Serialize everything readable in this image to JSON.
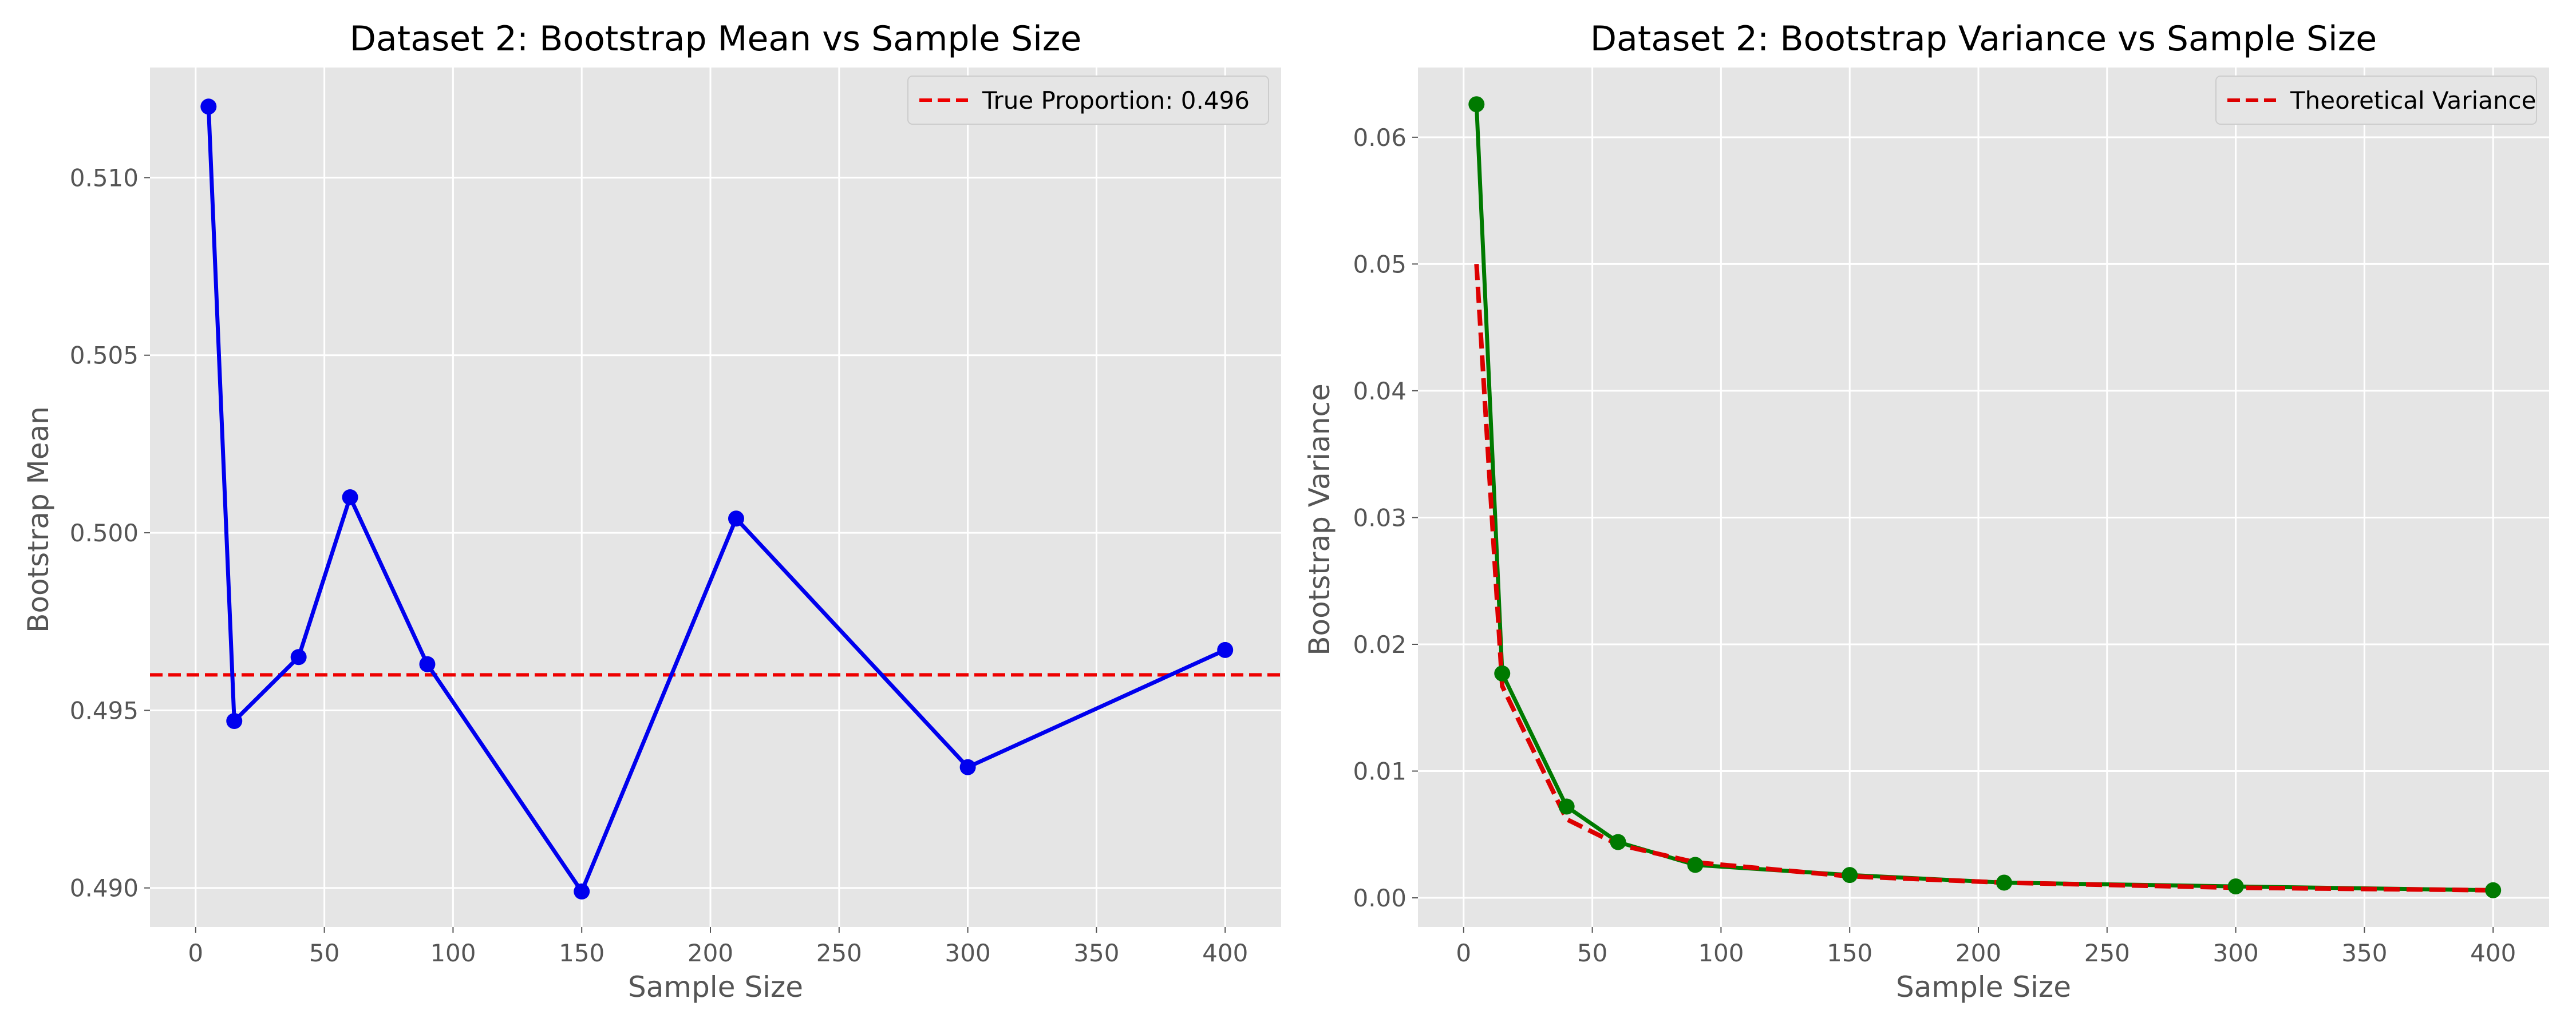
{
  "chart_data": [
    {
      "type": "line",
      "title": "Dataset 2: Bootstrap Mean vs Sample Size",
      "xlabel": "Sample Size",
      "ylabel": "Bootstrap Mean",
      "xlim": [
        -17.75,
        421.75
      ],
      "ylim": [
        0.4889,
        0.5131
      ],
      "xticks": [
        0,
        50,
        100,
        150,
        200,
        250,
        300,
        350,
        400
      ],
      "xtick_labels": [
        "0",
        "50",
        "100",
        "150",
        "200",
        "250",
        "300",
        "350",
        "400"
      ],
      "yticks": [
        0.49,
        0.495,
        0.5,
        0.505,
        0.51
      ],
      "ytick_labels": [
        "0.490",
        "0.495",
        "0.500",
        "0.505",
        "0.510"
      ],
      "grid": true,
      "legend_position": "upper-right",
      "x": [
        5,
        15,
        40,
        60,
        90,
        150,
        210,
        300,
        400
      ],
      "series": [
        {
          "values": [
            0.512,
            0.4947,
            0.4965,
            0.501,
            0.4963,
            0.4899,
            0.5004,
            0.4934,
            0.4967
          ],
          "color": "#0000ee",
          "style": "solid",
          "marker": "circle"
        }
      ],
      "reference_lines": [
        {
          "orientation": "horizontal",
          "y": 0.496,
          "label": "True Proportion: 0.496",
          "color": "#ee0000",
          "style": "dashed"
        }
      ]
    },
    {
      "type": "line",
      "title": "Dataset 2: Bootstrap Variance vs Sample Size",
      "xlabel": "Sample Size",
      "ylabel": "Bootstrap Variance",
      "xlim": [
        -17.75,
        421.75
      ],
      "ylim": [
        -0.0023,
        0.0655
      ],
      "xticks": [
        0,
        50,
        100,
        150,
        200,
        250,
        300,
        350,
        400
      ],
      "xtick_labels": [
        "0",
        "50",
        "100",
        "150",
        "200",
        "250",
        "300",
        "350",
        "400"
      ],
      "yticks": [
        0.0,
        0.01,
        0.02,
        0.03,
        0.04,
        0.05,
        0.06
      ],
      "ytick_labels": [
        "0.00",
        "0.01",
        "0.02",
        "0.03",
        "0.04",
        "0.05",
        "0.06"
      ],
      "grid": true,
      "legend_position": "upper-right",
      "x": [
        5,
        15,
        40,
        60,
        90,
        150,
        210,
        300,
        400
      ],
      "series": [
        {
          "values": [
            0.0626,
            0.0177,
            0.0072,
            0.0044,
            0.0026,
            0.0018,
            0.0012,
            0.0009,
            0.0006
          ],
          "color": "#007a00",
          "style": "solid",
          "marker": "circle"
        },
        {
          "name": "Theoretical Variance",
          "values": [
            0.05,
            0.0167,
            0.0062,
            0.0042,
            0.0028,
            0.0017,
            0.0012,
            0.0008,
            0.0006
          ],
          "color": "#dd0000",
          "style": "dashed",
          "marker": "none"
        }
      ]
    }
  ]
}
